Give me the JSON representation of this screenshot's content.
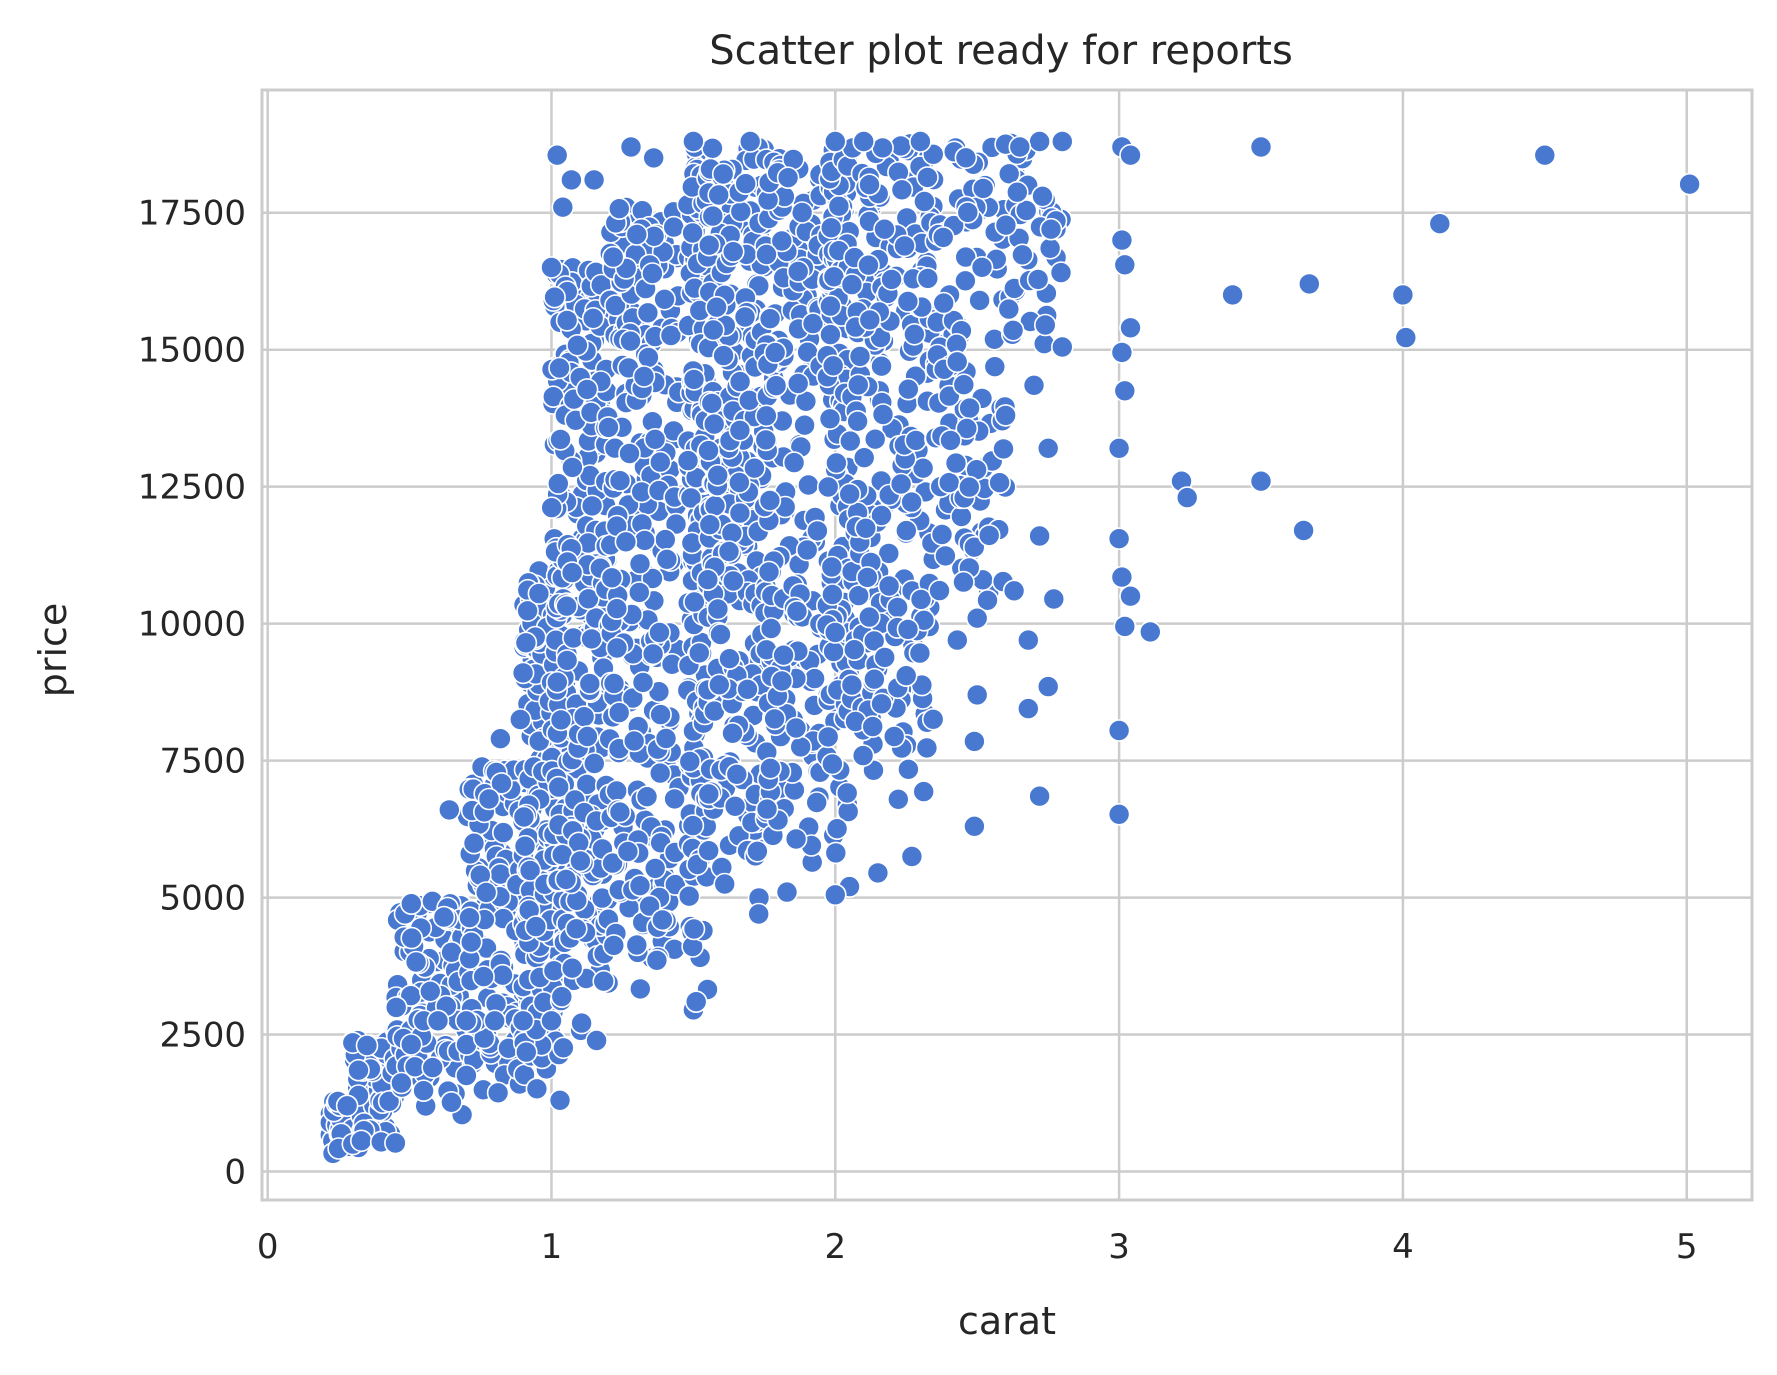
{
  "chart_data": {
    "type": "scatter",
    "title": "Scatter plot ready for reports",
    "xlabel": "carat",
    "ylabel": "price",
    "xlim": [
      -0.02,
      5.23
    ],
    "ylim": [
      -520,
      19740
    ],
    "xticks": [
      0,
      1,
      2,
      3,
      4,
      5
    ],
    "yticks": [
      0,
      2500,
      5000,
      7500,
      10000,
      12500,
      15000,
      17500
    ],
    "grid": true,
    "legend": "none",
    "point_color": "#4878d0",
    "points_note": "dense clouds approximated; sparse outliers listed individually",
    "series": [
      {
        "points": [
          [
            0.23,
            330
          ],
          [
            0.25,
            420
          ],
          [
            0.3,
            500
          ],
          [
            0.33,
            560
          ],
          [
            0.4,
            540
          ],
          [
            0.45,
            520
          ],
          [
            0.3,
            2350
          ],
          [
            0.35,
            2300
          ],
          [
            0.32,
            1850
          ],
          [
            0.28,
            1200
          ],
          [
            0.64,
            6600
          ],
          [
            0.55,
            2750
          ],
          [
            0.6,
            2750
          ],
          [
            0.7,
            2750
          ],
          [
            0.8,
            2750
          ],
          [
            0.9,
            2750
          ],
          [
            1.0,
            2750
          ],
          [
            1.03,
            1300
          ],
          [
            0.82,
            7900
          ],
          [
            0.91,
            9650
          ],
          [
            0.9,
            9100
          ],
          [
            0.89,
            8250
          ],
          [
            0.78,
            6800
          ],
          [
            1.02,
            18550
          ],
          [
            1.04,
            17600
          ],
          [
            1.07,
            18100
          ],
          [
            1.0,
            16500
          ],
          [
            1.15,
            18100
          ],
          [
            1.28,
            18700
          ],
          [
            1.36,
            18500
          ],
          [
            1.5,
            18800
          ],
          [
            1.7,
            18800
          ],
          [
            2.0,
            18800
          ],
          [
            2.1,
            18800
          ],
          [
            2.3,
            18800
          ],
          [
            2.6,
            18750
          ],
          [
            2.8,
            18800
          ],
          [
            2.65,
            18700
          ],
          [
            3.01,
            18700
          ],
          [
            3.04,
            18550
          ],
          [
            3.5,
            18700
          ],
          [
            4.5,
            18550
          ],
          [
            5.01,
            18020
          ],
          [
            4.13,
            17300
          ],
          [
            3.01,
            17000
          ],
          [
            3.02,
            16550
          ],
          [
            3.4,
            16000
          ],
          [
            3.67,
            16200
          ],
          [
            4.0,
            16000
          ],
          [
            4.01,
            15220
          ],
          [
            3.04,
            15400
          ],
          [
            3.01,
            14950
          ],
          [
            3.02,
            14250
          ],
          [
            3.22,
            12600
          ],
          [
            3.24,
            12300
          ],
          [
            3.5,
            12600
          ],
          [
            3.65,
            11700
          ],
          [
            3.0,
            13200
          ],
          [
            3.0,
            11550
          ],
          [
            3.01,
            10850
          ],
          [
            3.04,
            10500
          ],
          [
            3.02,
            9950
          ],
          [
            3.11,
            9850
          ],
          [
            3.0,
            8050
          ],
          [
            3.0,
            6520
          ],
          [
            2.72,
            6850
          ],
          [
            2.72,
            11600
          ],
          [
            2.75,
            13200
          ],
          [
            2.8,
            15050
          ],
          [
            2.74,
            15450
          ],
          [
            2.7,
            14350
          ],
          [
            2.77,
            10450
          ],
          [
            2.63,
            10600
          ],
          [
            2.75,
            8850
          ],
          [
            2.68,
            8450
          ],
          [
            2.68,
            9700
          ],
          [
            2.5,
            8700
          ],
          [
            2.49,
            7850
          ],
          [
            2.49,
            6300
          ],
          [
            2.5,
            10100
          ],
          [
            2.43,
            9700
          ],
          [
            2.27,
            5750
          ],
          [
            2.15,
            5450
          ],
          [
            2.05,
            5200
          ],
          [
            2.0,
            5050
          ],
          [
            1.83,
            5100
          ],
          [
            1.73,
            4700
          ],
          [
            1.5,
            2950
          ],
          [
            1.51,
            3100
          ],
          [
            2.76,
            17200
          ],
          [
            2.73,
            17800
          ],
          [
            2.6,
            13800
          ],
          [
            2.25,
            9050
          ]
        ]
      }
    ]
  }
}
